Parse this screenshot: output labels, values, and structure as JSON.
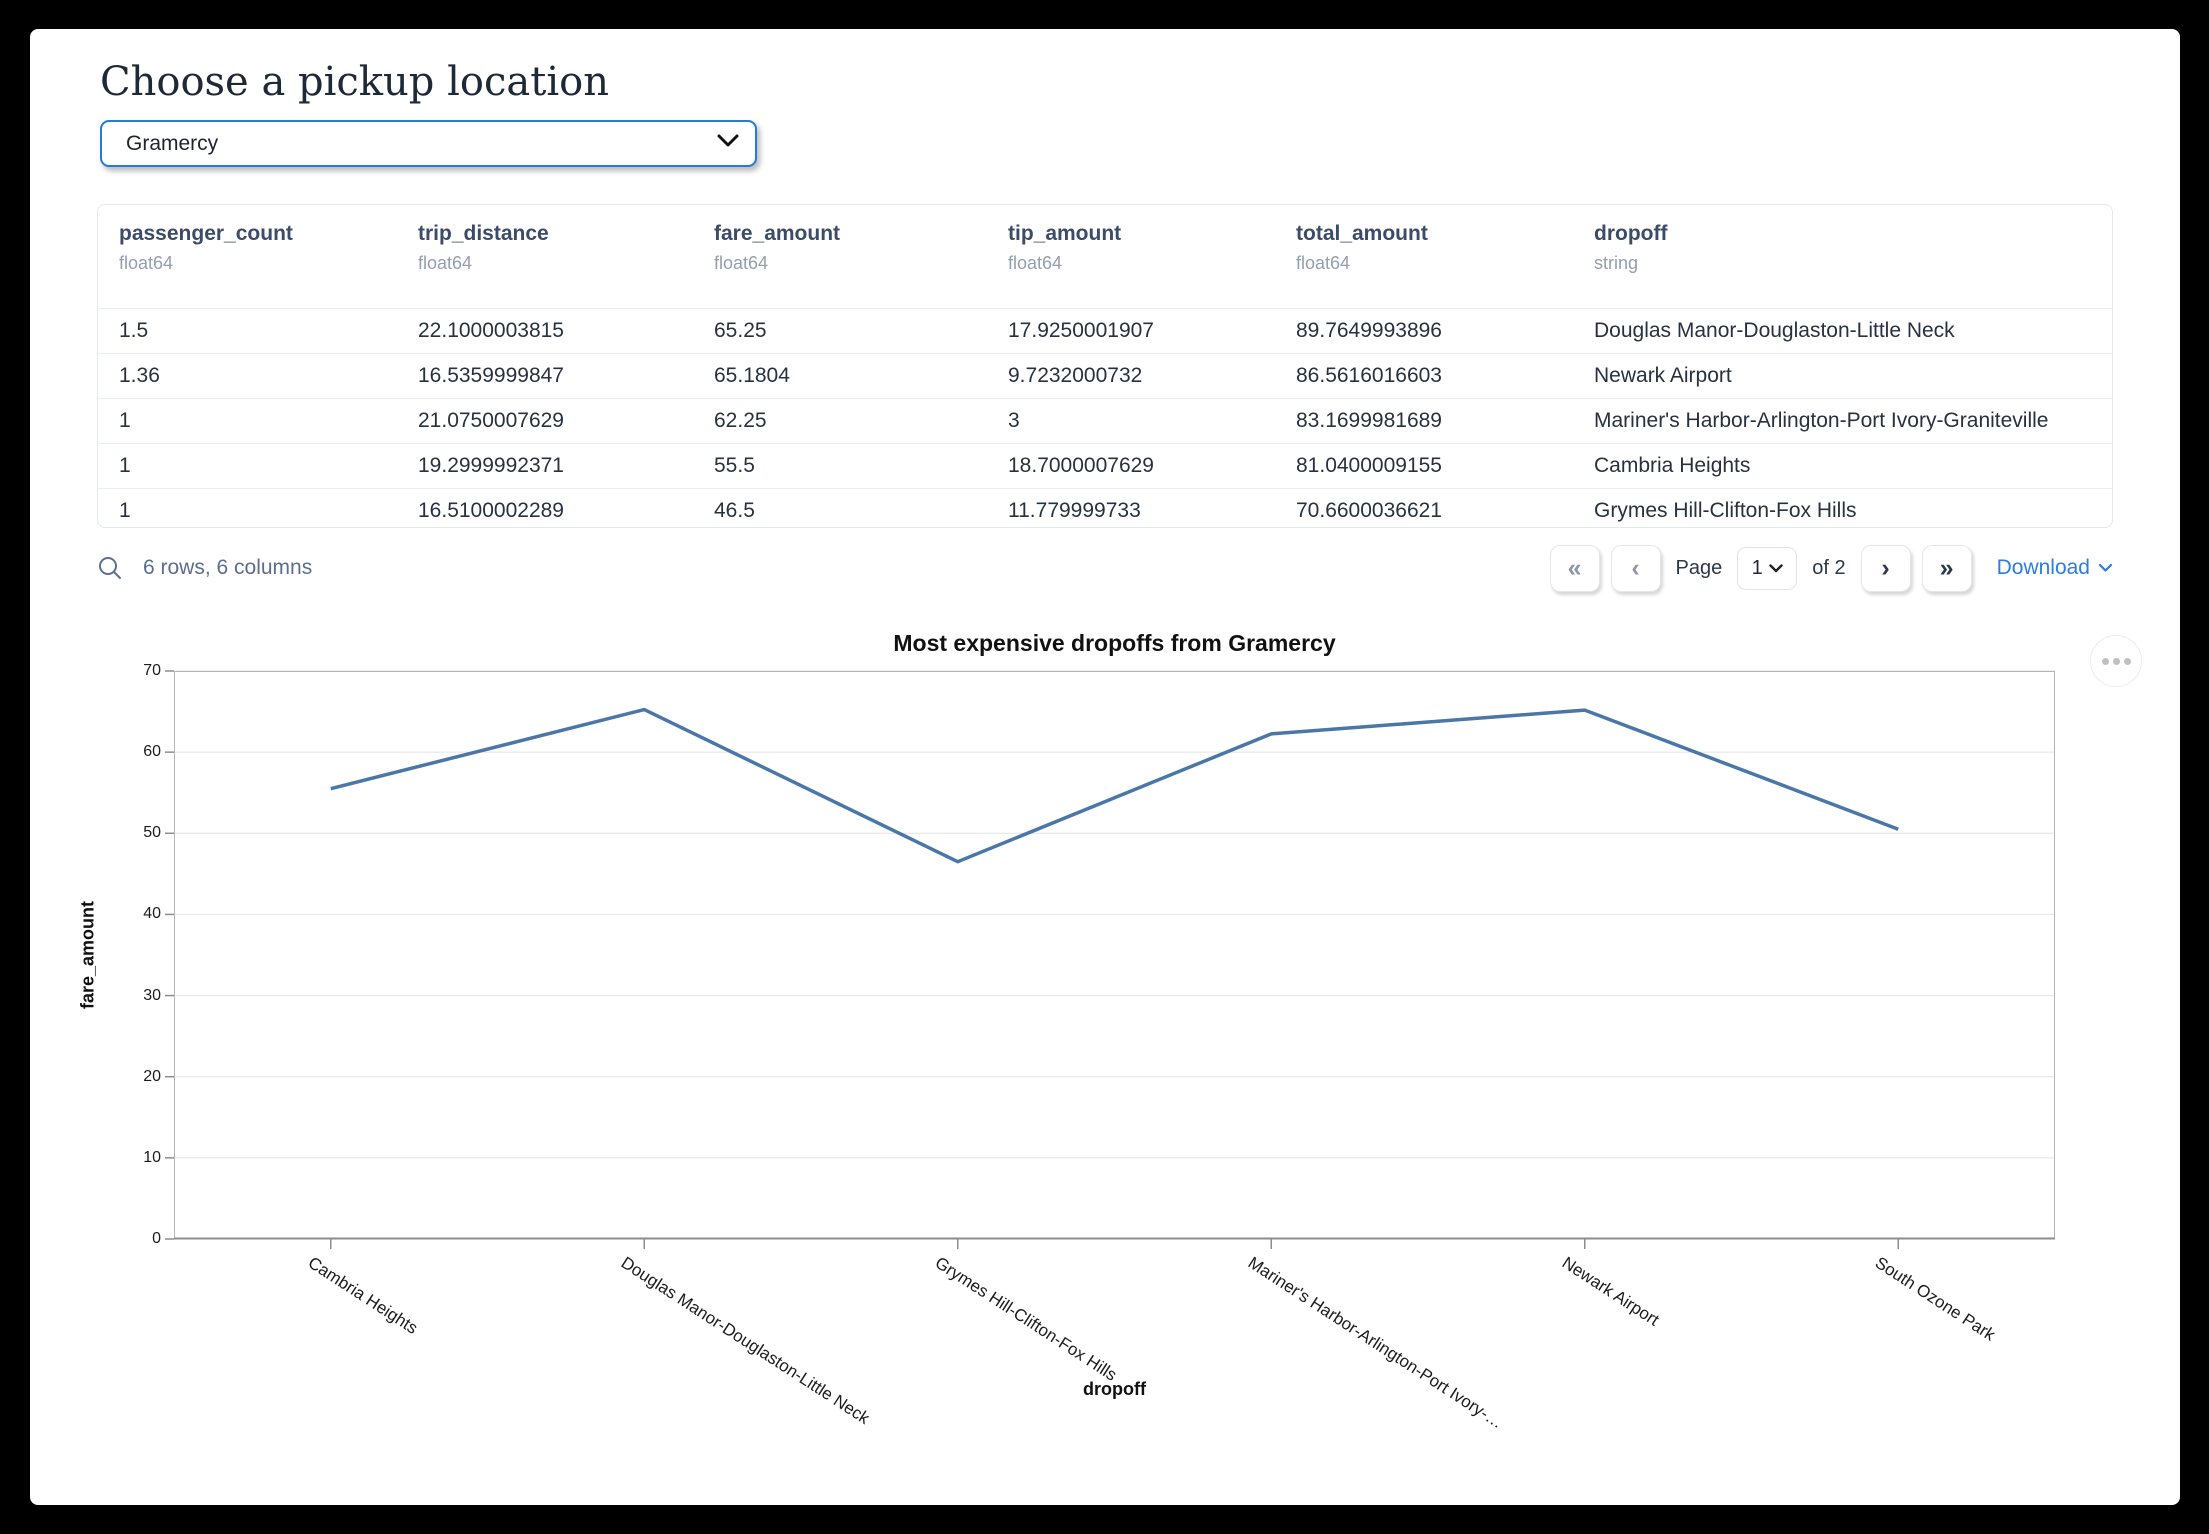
{
  "header": {
    "title": "Choose a pickup location"
  },
  "pickup_select": {
    "value": "Gramercy"
  },
  "table": {
    "columns": [
      {
        "name": "passenger_count",
        "dtype": "float64"
      },
      {
        "name": "trip_distance",
        "dtype": "float64"
      },
      {
        "name": "fare_amount",
        "dtype": "float64"
      },
      {
        "name": "tip_amount",
        "dtype": "float64"
      },
      {
        "name": "total_amount",
        "dtype": "float64"
      },
      {
        "name": "dropoff",
        "dtype": "string"
      }
    ],
    "rows": [
      [
        "1.5",
        "22.1000003815",
        "65.25",
        "17.9250001907",
        "89.7649993896",
        "Douglas Manor-Douglaston-Little Neck"
      ],
      [
        "1.36",
        "16.5359999847",
        "65.1804",
        "9.7232000732",
        "86.5616016603",
        "Newark Airport"
      ],
      [
        "1",
        "21.0750007629",
        "62.25",
        "3",
        "83.1699981689",
        "Mariner's Harbor-Arlington-Port Ivory-Graniteville"
      ],
      [
        "1",
        "19.2999992371",
        "55.5",
        "18.7000007629",
        "81.0400009155",
        "Cambria Heights"
      ],
      [
        "1",
        "16.5100002289",
        "46.5",
        "11.779999733",
        "70.6600036621",
        "Grymes Hill-Clifton-Fox Hills"
      ]
    ],
    "footer": {
      "summary": "6 rows, 6 columns",
      "first_label": "«",
      "prev_label": "‹",
      "page_label": "Page",
      "page_value": "1",
      "of_label": "of 2",
      "next_label": "›",
      "last_label": "»",
      "download_label": "Download"
    }
  },
  "chart_data": {
    "type": "line",
    "title": "Most expensive dropoffs from Gramercy",
    "xlabel": "dropoff",
    "ylabel": "fare_amount",
    "categories": [
      "Cambria Heights",
      "Douglas Manor-Douglaston-Little Neck",
      "Grymes Hill-Clifton-Fox Hills",
      "Mariner's Harbor-Arlington-Port Ivory-…",
      "Newark Airport",
      "South Ozone Park"
    ],
    "values": [
      55.5,
      65.25,
      46.5,
      62.25,
      65.1804,
      50.5
    ],
    "ylim": [
      0,
      70
    ],
    "yticks": [
      0,
      10,
      20,
      30,
      40,
      50,
      60,
      70
    ],
    "grid": true,
    "legend": "none",
    "line_color": "#4a76a8"
  },
  "colors": {
    "select_border": "#2679dd",
    "link_blue": "#2e7ce0",
    "line_blue": "#4a76a8",
    "grid_gray": "#e4e4e4"
  }
}
